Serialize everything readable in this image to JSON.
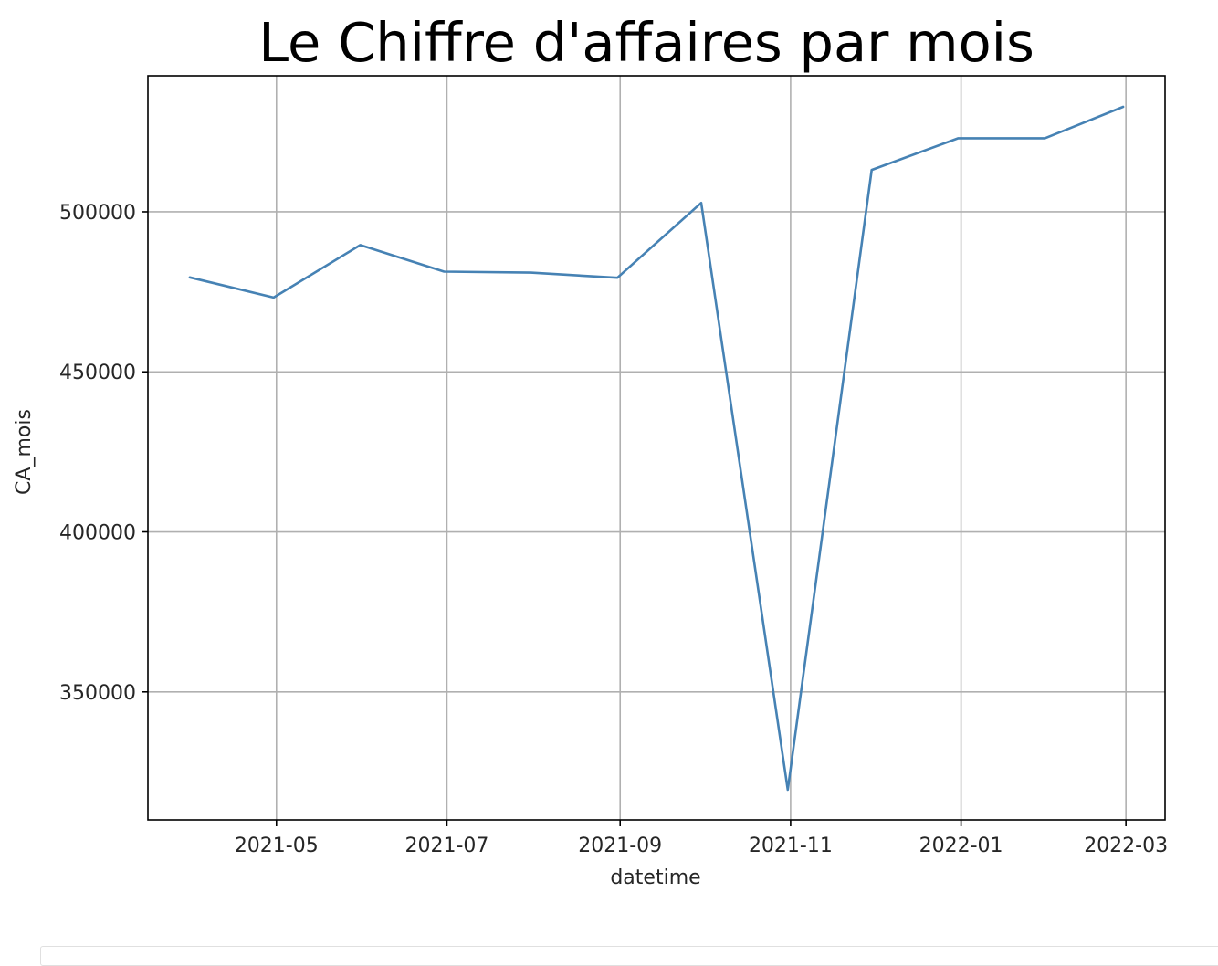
{
  "chart_data": {
    "type": "line",
    "title": "Le Chiffre d'affaires par mois",
    "xlabel": "datetime",
    "ylabel": "CA_mois",
    "x": [
      "2021-03-31",
      "2021-04-30",
      "2021-05-31",
      "2021-06-30",
      "2021-07-31",
      "2021-08-31",
      "2021-09-30",
      "2021-10-31",
      "2021-11-30",
      "2021-12-31",
      "2022-01-31",
      "2022-02-28"
    ],
    "series": [
      {
        "values": [
          479500,
          473200,
          489600,
          481300,
          481000,
          479400,
          502800,
          319400,
          513100,
          523000,
          523000,
          532800
        ]
      }
    ],
    "xticks": [
      "2021-05-01",
      "2021-07-01",
      "2021-09-01",
      "2021-11-01",
      "2022-01-01",
      "2022-03-01"
    ],
    "xtick_labels": [
      "2021-05",
      "2021-07",
      "2021-09",
      "2021-11",
      "2022-01",
      "2022-03"
    ],
    "yticks": [
      350000,
      400000,
      450000,
      500000
    ],
    "yticks_labels": [
      "350000",
      "400000",
      "450000",
      "500000"
    ],
    "xlim": [
      "2021-03-16",
      "2022-03-15"
    ],
    "ylim": [
      310000,
      542500
    ],
    "grid": true,
    "line_color": "#4682b4"
  }
}
